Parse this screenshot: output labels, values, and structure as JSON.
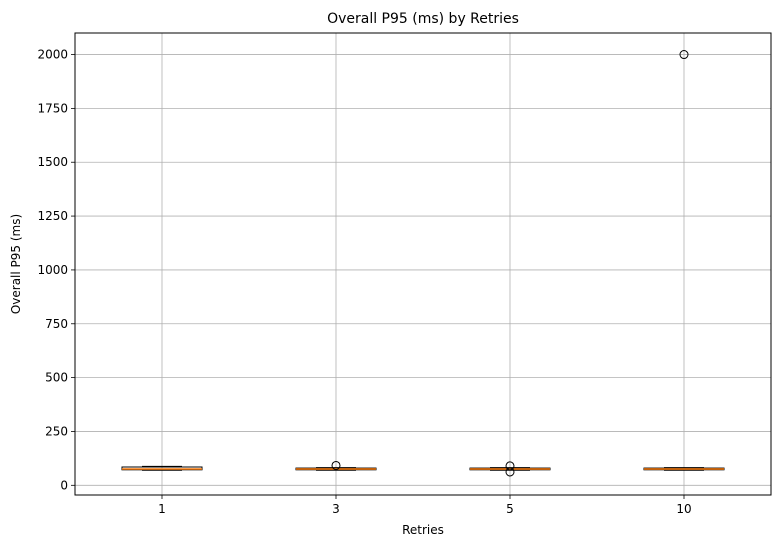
{
  "chart_data": {
    "type": "box",
    "title": "Overall P95 (ms) by Retries",
    "xlabel": "Retries",
    "ylabel": "Overall P95 (ms)",
    "categories": [
      "1",
      "3",
      "5",
      "10"
    ],
    "ylim": [
      -45,
      2100
    ],
    "yticks": [
      0,
      250,
      500,
      750,
      1000,
      1250,
      1500,
      1750,
      2000
    ],
    "grid": true,
    "boxes": [
      {
        "category": "1",
        "whisker_low": 70,
        "q1": 72,
        "median": 76,
        "q3": 85,
        "whisker_high": 88,
        "outliers": []
      },
      {
        "category": "3",
        "whisker_low": 70,
        "q1": 72,
        "median": 76,
        "q3": 80,
        "whisker_high": 82,
        "outliers": [
          92
        ]
      },
      {
        "category": "5",
        "whisker_low": 70,
        "q1": 72,
        "median": 76,
        "q3": 80,
        "whisker_high": 82,
        "outliers": [
          62,
          90
        ]
      },
      {
        "category": "10",
        "whisker_low": 70,
        "q1": 72,
        "median": 76,
        "q3": 80,
        "whisker_high": 82,
        "outliers": [
          2000
        ]
      }
    ],
    "colors": {
      "box": "#000000",
      "median": "#ff7f0e",
      "grid": "#b0b0b0",
      "outlier_edge": "#000000"
    }
  }
}
